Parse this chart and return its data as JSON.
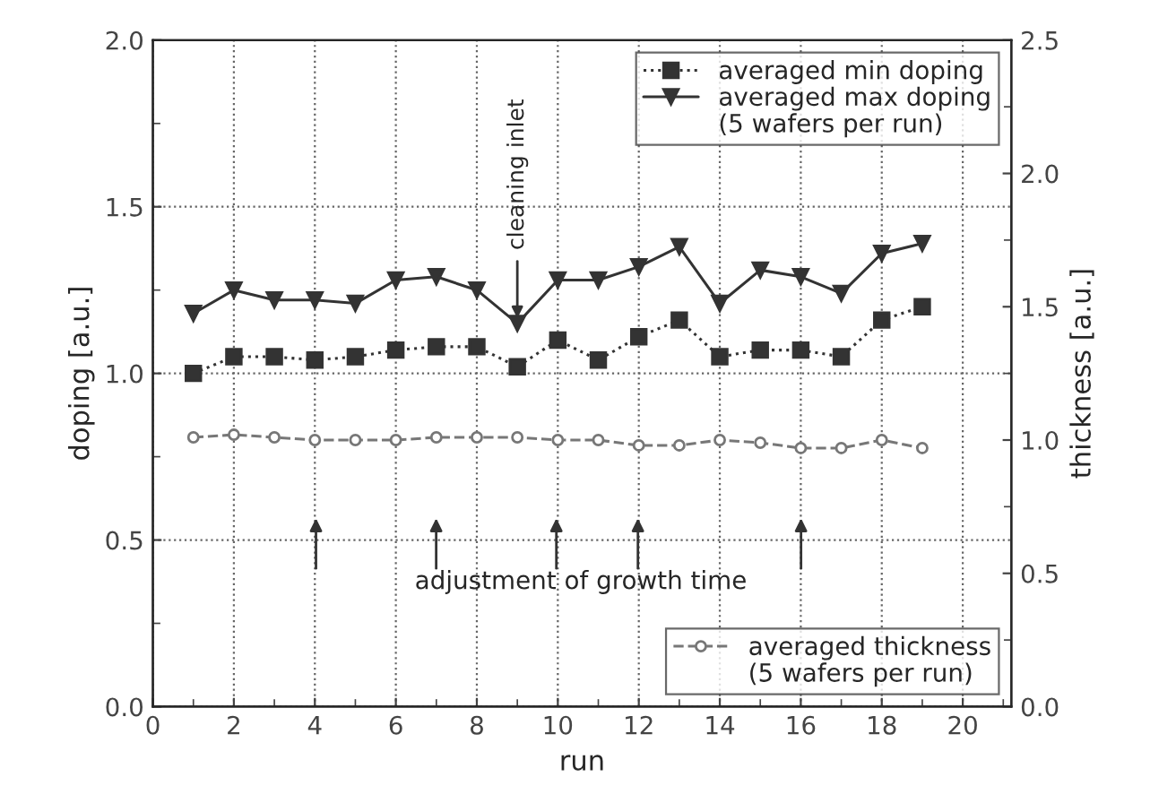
{
  "chart_data": {
    "type": "line",
    "xlabel": "run",
    "ylabel": "doping [a.u.]",
    "y2label": "thickness [a.u.]",
    "legend_title": "(5 wafers per run)",
    "x": [
      1,
      2,
      3,
      4,
      5,
      6,
      7,
      8,
      9,
      10,
      11,
      12,
      13,
      14,
      15,
      16,
      17,
      18,
      19
    ],
    "series": [
      {
        "name": "averaged min doping",
        "color": "#333333",
        "marker": "square",
        "line_style": "dotted",
        "values": [
          1.0,
          1.05,
          1.05,
          1.04,
          1.05,
          1.07,
          1.08,
          1.08,
          1.02,
          1.1,
          1.04,
          1.11,
          1.16,
          1.05,
          1.07,
          1.07,
          1.05,
          1.16,
          1.2
        ]
      },
      {
        "name": "averaged max doping",
        "color": "#333333",
        "marker": "triangle",
        "line_style": "solid",
        "values": [
          1.18,
          1.25,
          1.22,
          1.22,
          1.21,
          1.28,
          1.29,
          1.25,
          1.15,
          1.28,
          1.28,
          1.32,
          1.38,
          1.21,
          1.31,
          1.29,
          1.24,
          1.36,
          1.39
        ]
      },
      {
        "name": "averaged thickness",
        "color": "#777777",
        "marker": "circle",
        "line_style": "dashed",
        "axis": "y2",
        "values": [
          1.01,
          1.02,
          1.01,
          1.0,
          1.0,
          1.0,
          1.01,
          1.01,
          1.01,
          1.0,
          1.0,
          0.98,
          0.98,
          1.0,
          0.99,
          0.97,
          0.97,
          1.0,
          0.97
        ]
      }
    ],
    "annotations": [
      {
        "text": "cleaning inlet",
        "x": 9,
        "y": 1.15
      },
      "adjustment of growth time"
    ],
    "xlim": [
      0,
      21.2
    ],
    "xticks": [
      0,
      2,
      4,
      6,
      8,
      10,
      12,
      14,
      16,
      18,
      20
    ],
    "ylim": [
      0,
      2.0
    ],
    "yticks": [
      {
        "value": 0,
        "label": "0.0"
      },
      0.5,
      {
        "value": 1,
        "label": "1.0"
      },
      1.5,
      {
        "value": 2,
        "label": "2.0"
      }
    ],
    "y2lim": [
      0,
      2.5
    ],
    "y2ticks": [
      {
        "value": 0,
        "label": "0.0"
      },
      0.5,
      {
        "value": 1,
        "label": "1.0"
      },
      1.5,
      {
        "value": 2,
        "label": "2.0"
      },
      2.5
    ],
    "grid": true,
    "legend": "top right"
  }
}
